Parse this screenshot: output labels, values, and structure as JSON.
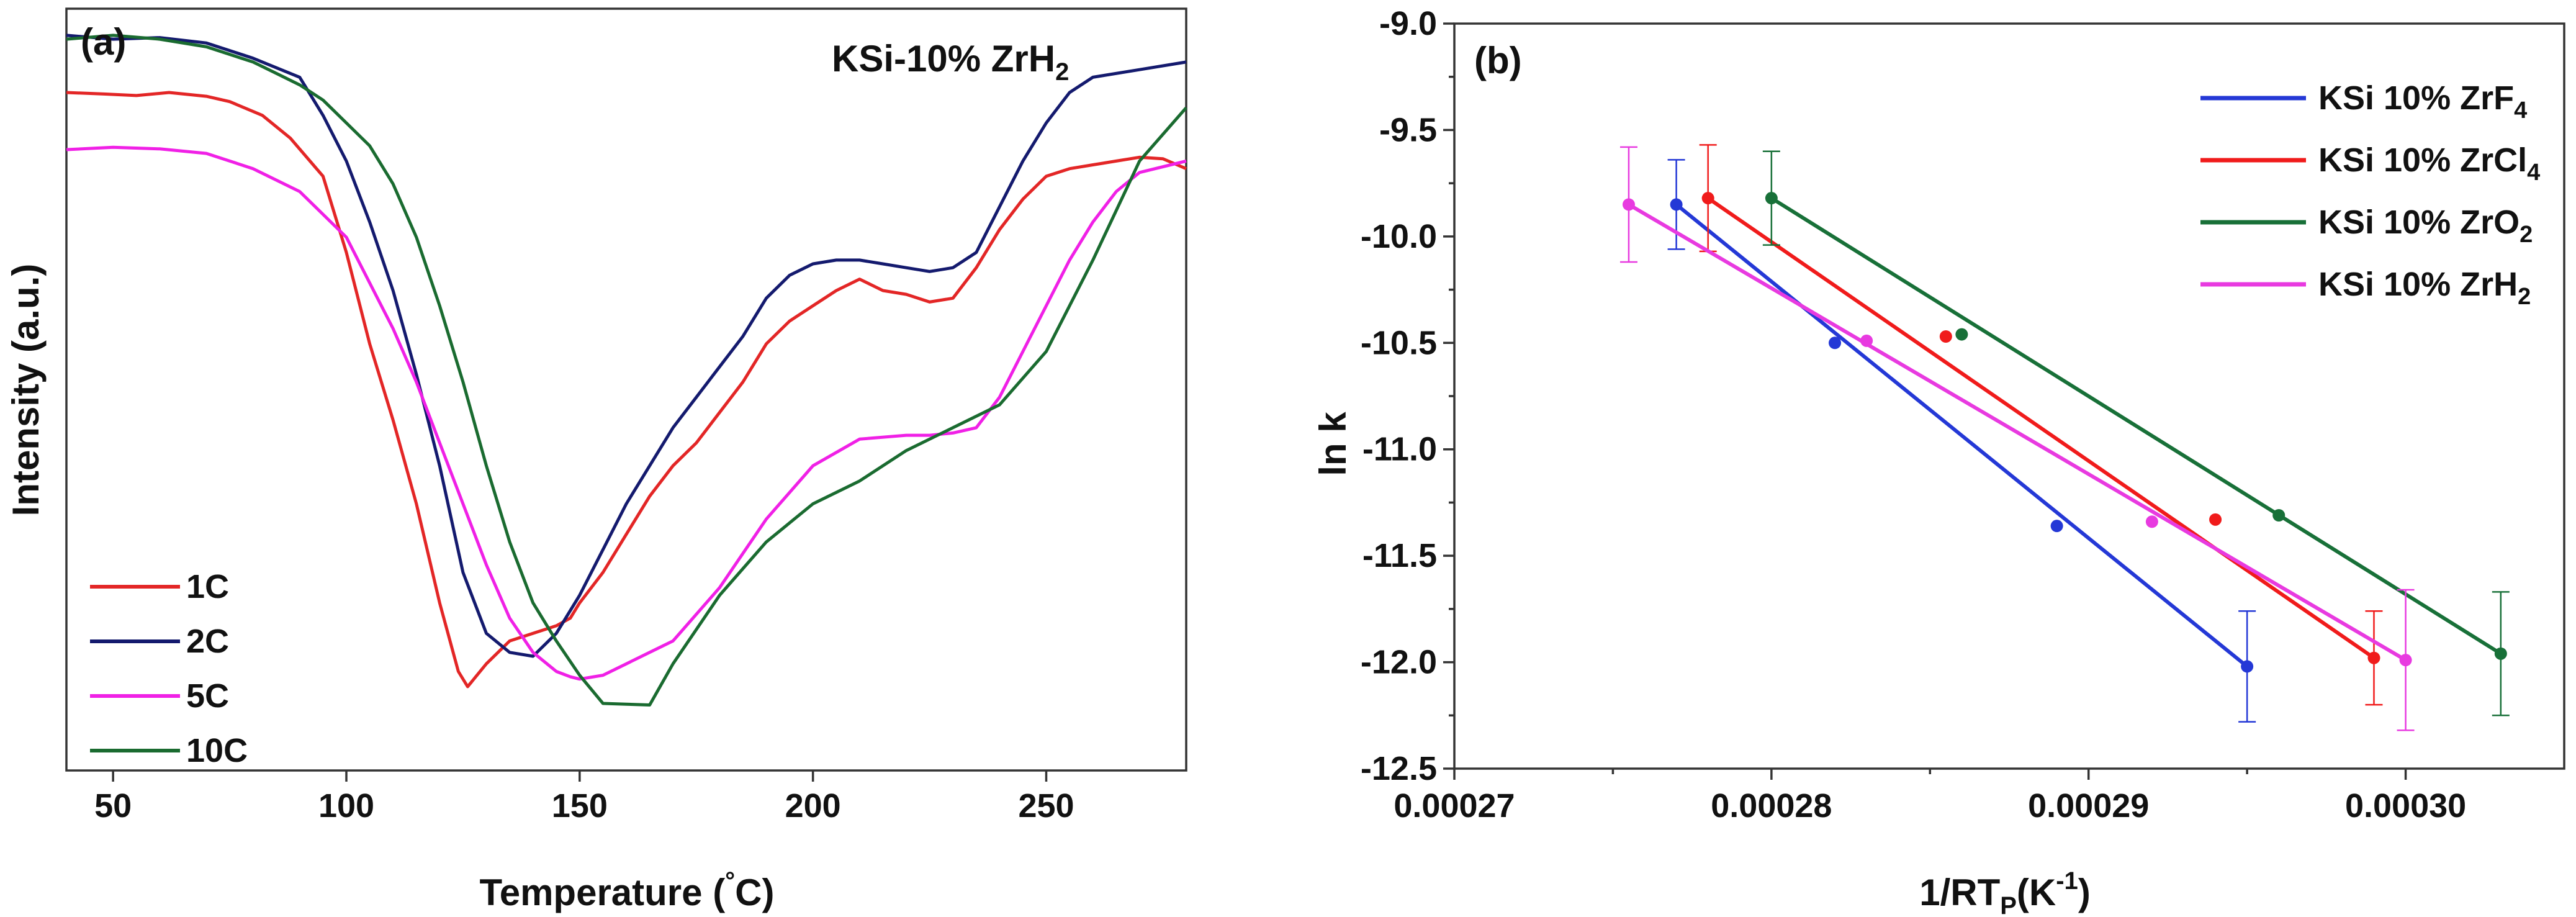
{
  "chart_data": [
    {
      "type": "line",
      "panel_label": "(a)",
      "annotation": {
        "text": "KSi-10% ZrH",
        "sub": "2"
      },
      "xlabel": {
        "text": "Temperature (",
        "sup": "°",
        "after": "C)"
      },
      "ylabel": "Intensity (a.u.)",
      "xlim": [
        40,
        280
      ],
      "ylim": [
        0,
        100
      ],
      "xticks": [
        50,
        100,
        150,
        200,
        250
      ],
      "legend_position": "bottom-left",
      "series": [
        {
          "name": "1C",
          "color": "#e32626",
          "x": [
            40,
            48,
            55,
            62,
            70,
            75,
            82,
            88,
            95,
            100,
            105,
            110,
            115,
            120,
            124,
            126,
            130,
            135,
            140,
            145,
            148,
            150,
            155,
            160,
            165,
            170,
            175,
            180,
            185,
            190,
            195,
            200,
            205,
            210,
            215,
            220,
            225,
            230,
            235,
            240,
            245,
            250,
            255,
            260,
            265,
            270,
            275,
            280
          ],
          "y": [
            89,
            88.8,
            88.6,
            89,
            88.5,
            87.8,
            86,
            83,
            78,
            68,
            56,
            46,
            35,
            22,
            13,
            11,
            14,
            17,
            18,
            19,
            20,
            22,
            26,
            31,
            36,
            40,
            43,
            47,
            51,
            56,
            59,
            61,
            63,
            64.5,
            63,
            62.5,
            61.5,
            62,
            66,
            71,
            75,
            78,
            79,
            79.5,
            80,
            80.5,
            80.3,
            79
          ]
        },
        {
          "name": "2C",
          "color": "#141a6e",
          "x": [
            40,
            50,
            60,
            70,
            80,
            90,
            95,
            100,
            105,
            110,
            115,
            120,
            125,
            130,
            135,
            140,
            145,
            150,
            155,
            160,
            165,
            170,
            175,
            180,
            185,
            190,
            195,
            200,
            205,
            210,
            215,
            220,
            225,
            230,
            235,
            240,
            245,
            250,
            255,
            260,
            270,
            280
          ],
          "y": [
            96.5,
            96,
            96.2,
            95.5,
            93.5,
            91,
            86,
            80,
            72,
            63,
            52,
            40,
            26,
            18,
            15.5,
            15,
            18,
            23,
            29,
            35,
            40,
            45,
            49,
            53,
            57,
            62,
            65,
            66.5,
            67,
            67,
            66.5,
            66,
            65.5,
            66,
            68,
            74,
            80,
            85,
            89,
            91,
            92,
            93
          ]
        },
        {
          "name": "5C",
          "color": "#f020e6",
          "x": [
            40,
            50,
            60,
            70,
            80,
            90,
            100,
            105,
            110,
            115,
            120,
            125,
            130,
            135,
            140,
            145,
            148,
            150,
            155,
            160,
            165,
            170,
            180,
            190,
            200,
            210,
            220,
            225,
            230,
            235,
            240,
            245,
            250,
            255,
            260,
            265,
            270,
            280
          ],
          "y": [
            81.5,
            81.8,
            81.6,
            81,
            79,
            76,
            70,
            64,
            58,
            51,
            43,
            35,
            27,
            20,
            15.5,
            13,
            12.3,
            12,
            12.5,
            14,
            15.5,
            17,
            24,
            33,
            40,
            43.5,
            44,
            44,
            44.3,
            45,
            49,
            55,
            61,
            67,
            72,
            76,
            78.5,
            80
          ]
        },
        {
          "name": "10C",
          "color": "#1a6b30",
          "x": [
            40,
            50,
            60,
            70,
            80,
            85,
            90,
            95,
            100,
            105,
            110,
            115,
            120,
            125,
            130,
            135,
            140,
            145,
            150,
            155,
            160,
            165,
            170,
            180,
            190,
            200,
            210,
            220,
            230,
            240,
            250,
            260,
            270,
            280
          ],
          "y": [
            96,
            96.5,
            96,
            95,
            93,
            91.5,
            90,
            88,
            85,
            82,
            77,
            70,
            61,
            51,
            40,
            30,
            22,
            17,
            12.5,
            8.8,
            8.7,
            8.6,
            14,
            23,
            30,
            35,
            38,
            42,
            45,
            48,
            55,
            67,
            80,
            87
          ]
        }
      ]
    },
    {
      "type": "scatter",
      "panel_label": "(b)",
      "xlabel": {
        "text": "1/RT",
        "sub": "P",
        "after": "(K",
        "sup": "-1",
        "end": ")"
      },
      "ylabel": "ln k",
      "xlim": [
        0.00027,
        0.000305
      ],
      "ylim": [
        -12.5,
        -9.0
      ],
      "xticks": [
        0.00027,
        0.00028,
        0.00029,
        0.0003
      ],
      "xtick_labels": [
        "0.00027",
        "0.00028",
        "0.00029",
        "0.00030"
      ],
      "yticks": [
        -9.0,
        -9.5,
        -10.0,
        -10.5,
        -11.0,
        -11.5,
        -12.0,
        -12.5
      ],
      "ytick_labels": [
        "-9.0",
        "-9.5",
        "-10.0",
        "-10.5",
        "-11.0",
        "-11.5",
        "-12.0",
        "-12.5"
      ],
      "legend_position": "top-right",
      "series": [
        {
          "name": "KSi 10% ZrF",
          "sub": "4",
          "color": "#2438d6",
          "x": [
            0.000277,
            0.000282,
            0.000289,
            0.000295
          ],
          "y": [
            -9.85,
            -10.5,
            -11.36,
            -12.02
          ],
          "err": [
            0.21,
            0,
            0,
            0.26
          ]
        },
        {
          "name": "KSi 10% ZrCl",
          "sub": "4",
          "color": "#f01b1b",
          "x": [
            0.000278,
            0.0002855,
            0.000294,
            0.000299
          ],
          "y": [
            -9.82,
            -10.47,
            -11.33,
            -11.98
          ],
          "err": [
            0.25,
            0,
            0,
            0.22
          ]
        },
        {
          "name": "KSi 10% ZrO",
          "sub": "2",
          "color": "#187038",
          "x": [
            0.00028,
            0.000286,
            0.000296,
            0.000303
          ],
          "y": [
            -9.82,
            -10.46,
            -11.31,
            -11.96
          ],
          "err": [
            0.22,
            0,
            0,
            0.29
          ]
        },
        {
          "name": "KSi 10% ZrH",
          "sub": "2",
          "color": "#e83ae0",
          "x": [
            0.0002755,
            0.000283,
            0.000292,
            0.0003
          ],
          "y": [
            -9.85,
            -10.49,
            -11.34,
            -11.99
          ],
          "err": [
            0.27,
            0,
            0,
            0.33
          ]
        }
      ]
    }
  ]
}
